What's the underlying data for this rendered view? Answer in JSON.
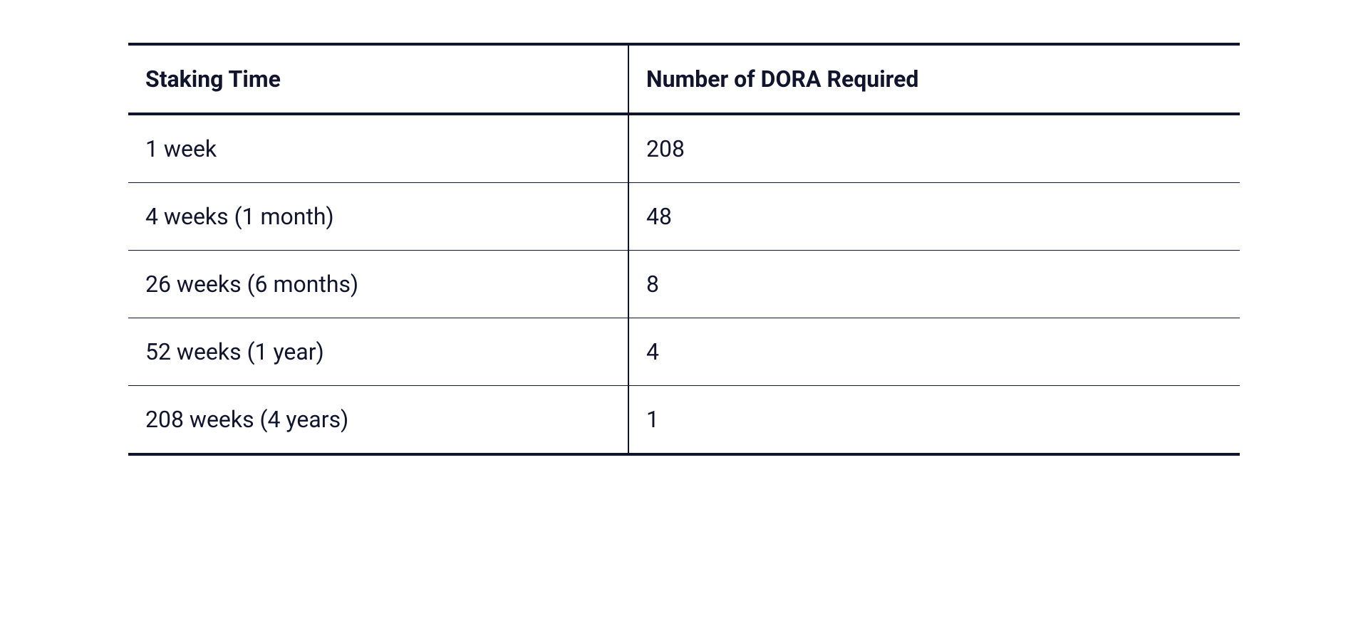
{
  "table": {
    "type": "table",
    "columns": [
      "Staking Time",
      "Number of DORA Required"
    ],
    "rows": [
      [
        "1 week",
        "208"
      ],
      [
        "4 weeks (1 month)",
        "48"
      ],
      [
        "26 weeks (6 months)",
        "8"
      ],
      [
        "52 weeks (1 year)",
        "4"
      ],
      [
        "208 weeks (4 years)",
        "1"
      ]
    ],
    "header_fontsize": 32,
    "header_fontweight": 700,
    "cell_fontsize": 32,
    "cell_fontweight": 400,
    "text_color": "#11142d",
    "background_color": "#ffffff",
    "border_color": "#11142d",
    "header_border_width": 4,
    "row_border_width": 1,
    "bottom_border_width": 4,
    "column_divider_width": 2,
    "column_1_width_pct": 45
  }
}
